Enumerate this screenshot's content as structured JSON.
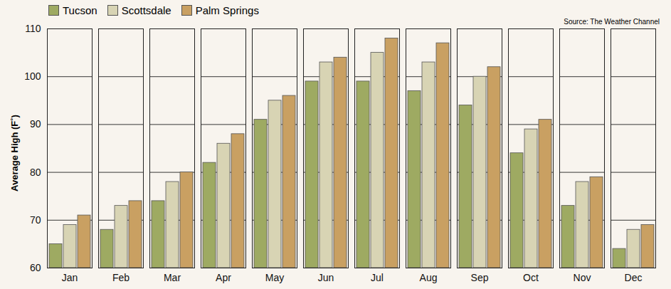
{
  "chart_data": {
    "type": "bar",
    "source": "Source: The Weather Channel",
    "y_label": "Average High (F˚)",
    "categories": [
      "Jan",
      "Feb",
      "Mar",
      "Apr",
      "May",
      "Jun",
      "Jul",
      "Aug",
      "Sep",
      "Oct",
      "Nov",
      "Dec"
    ],
    "series": [
      {
        "name": "Tucson",
        "color": "#9eaa62",
        "values": [
          65,
          68,
          74,
          82,
          91,
          99,
          99,
          97,
          94,
          84,
          73,
          64
        ]
      },
      {
        "name": "Scottsdale",
        "color": "#d8d4b4",
        "values": [
          69,
          73,
          78,
          86,
          95,
          103,
          105,
          103,
          100,
          89,
          78,
          68
        ]
      },
      {
        "name": "Palm Springs",
        "color": "#c9a062",
        "values": [
          71,
          74,
          80,
          88,
          96,
          104,
          108,
          107,
          102,
          91,
          79,
          69
        ]
      }
    ],
    "ylim": [
      60,
      110
    ],
    "yticks": [
      60,
      70,
      80,
      90,
      100,
      110
    ],
    "grid": true,
    "legend": "top-left"
  }
}
